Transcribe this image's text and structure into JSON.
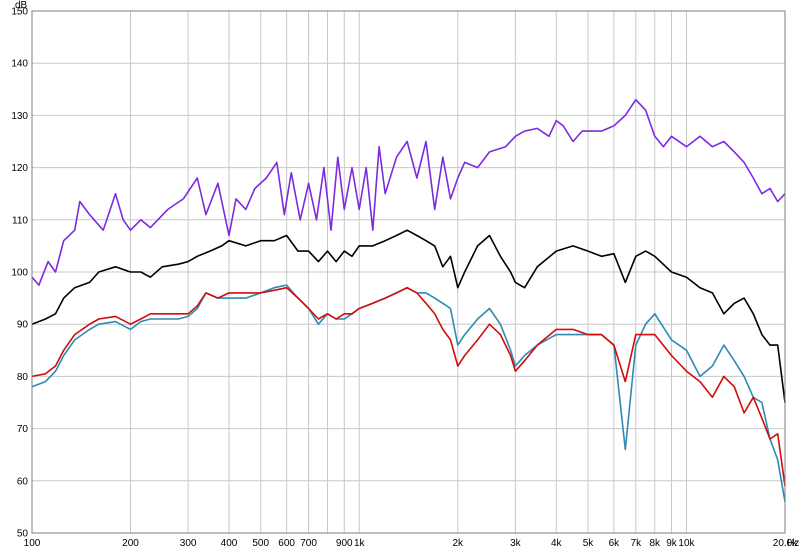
{
  "chart_data": {
    "type": "line",
    "xscale": "log",
    "xlim": [
      100,
      20000
    ],
    "ylim": [
      50,
      150
    ],
    "ylabel": "dB",
    "xunit": "Hz",
    "grid": true,
    "yticks": [
      50,
      60,
      70,
      80,
      90,
      100,
      110,
      120,
      130,
      140,
      150
    ],
    "xticks": [
      {
        "value": 100,
        "label": "100"
      },
      {
        "value": 200,
        "label": "200"
      },
      {
        "value": 300,
        "label": "300"
      },
      {
        "value": 400,
        "label": "400"
      },
      {
        "value": 500,
        "label": "500"
      },
      {
        "value": 600,
        "label": "600"
      },
      {
        "value": 700,
        "label": "700"
      },
      {
        "value": 900,
        "label": "900"
      },
      {
        "value": 1000,
        "label": "1k"
      },
      {
        "value": 2000,
        "label": "2k"
      },
      {
        "value": 3000,
        "label": "3k"
      },
      {
        "value": 4000,
        "label": "4k"
      },
      {
        "value": 5000,
        "label": "5k"
      },
      {
        "value": 6000,
        "label": "6k"
      },
      {
        "value": 7000,
        "label": "7k"
      },
      {
        "value": 8000,
        "label": "8k"
      },
      {
        "value": 9000,
        "label": "9k"
      },
      {
        "value": 10000,
        "label": "10k"
      },
      {
        "value": 20000,
        "label": "20.0k"
      }
    ],
    "xgrid": [
      100,
      200,
      300,
      400,
      500,
      600,
      700,
      800,
      900,
      1000,
      2000,
      3000,
      4000,
      5000,
      6000,
      7000,
      8000,
      9000,
      10000,
      20000
    ],
    "series": [
      {
        "color": "#7b2be0",
        "points": [
          [
            100,
            99
          ],
          [
            105,
            97.5
          ],
          [
            112,
            102
          ],
          [
            118,
            100
          ],
          [
            125,
            106
          ],
          [
            135,
            108
          ],
          [
            140,
            113.5
          ],
          [
            150,
            111
          ],
          [
            165,
            108
          ],
          [
            180,
            115
          ],
          [
            190,
            110
          ],
          [
            200,
            108
          ],
          [
            215,
            110
          ],
          [
            230,
            108.5
          ],
          [
            260,
            112
          ],
          [
            290,
            114
          ],
          [
            320,
            118
          ],
          [
            340,
            111
          ],
          [
            370,
            117
          ],
          [
            400,
            107
          ],
          [
            420,
            114
          ],
          [
            450,
            112
          ],
          [
            480,
            116
          ],
          [
            520,
            118
          ],
          [
            560,
            121
          ],
          [
            590,
            111
          ],
          [
            620,
            119
          ],
          [
            660,
            110
          ],
          [
            700,
            117
          ],
          [
            740,
            110
          ],
          [
            780,
            120
          ],
          [
            820,
            108
          ],
          [
            860,
            122
          ],
          [
            900,
            112
          ],
          [
            950,
            120
          ],
          [
            1000,
            112
          ],
          [
            1050,
            120
          ],
          [
            1100,
            108
          ],
          [
            1150,
            124
          ],
          [
            1200,
            115
          ],
          [
            1300,
            122
          ],
          [
            1400,
            125
          ],
          [
            1500,
            118
          ],
          [
            1600,
            125
          ],
          [
            1700,
            112
          ],
          [
            1800,
            122
          ],
          [
            1900,
            114
          ],
          [
            2000,
            118
          ],
          [
            2100,
            121
          ],
          [
            2300,
            120
          ],
          [
            2500,
            123
          ],
          [
            2800,
            124
          ],
          [
            3000,
            126
          ],
          [
            3200,
            127
          ],
          [
            3500,
            127.5
          ],
          [
            3800,
            126
          ],
          [
            4000,
            129
          ],
          [
            4200,
            128
          ],
          [
            4500,
            125
          ],
          [
            4800,
            127
          ],
          [
            5000,
            127
          ],
          [
            5500,
            127
          ],
          [
            6000,
            128
          ],
          [
            6500,
            130
          ],
          [
            7000,
            133
          ],
          [
            7500,
            131
          ],
          [
            8000,
            126
          ],
          [
            8500,
            124
          ],
          [
            9000,
            126
          ],
          [
            10000,
            124
          ],
          [
            11000,
            126
          ],
          [
            12000,
            124
          ],
          [
            13000,
            125
          ],
          [
            14000,
            123
          ],
          [
            15000,
            121
          ],
          [
            16000,
            118
          ],
          [
            17000,
            115
          ],
          [
            18000,
            116
          ],
          [
            19000,
            113.5
          ],
          [
            20000,
            115
          ]
        ]
      },
      {
        "color": "#000000",
        "points": [
          [
            100,
            90
          ],
          [
            110,
            91
          ],
          [
            118,
            92
          ],
          [
            125,
            95
          ],
          [
            135,
            97
          ],
          [
            150,
            98
          ],
          [
            160,
            100
          ],
          [
            180,
            101
          ],
          [
            200,
            100
          ],
          [
            215,
            100
          ],
          [
            230,
            99
          ],
          [
            250,
            101
          ],
          [
            280,
            101.5
          ],
          [
            300,
            102
          ],
          [
            320,
            103
          ],
          [
            350,
            104
          ],
          [
            380,
            105
          ],
          [
            400,
            106
          ],
          [
            450,
            105
          ],
          [
            500,
            106
          ],
          [
            550,
            106
          ],
          [
            600,
            107
          ],
          [
            650,
            104
          ],
          [
            700,
            104
          ],
          [
            750,
            102
          ],
          [
            800,
            104
          ],
          [
            850,
            102
          ],
          [
            900,
            104
          ],
          [
            950,
            103
          ],
          [
            1000,
            105
          ],
          [
            1100,
            105
          ],
          [
            1200,
            106
          ],
          [
            1300,
            107
          ],
          [
            1400,
            108
          ],
          [
            1500,
            107
          ],
          [
            1600,
            106
          ],
          [
            1700,
            105
          ],
          [
            1800,
            101
          ],
          [
            1900,
            103
          ],
          [
            2000,
            97
          ],
          [
            2100,
            100
          ],
          [
            2300,
            105
          ],
          [
            2500,
            107
          ],
          [
            2700,
            103
          ],
          [
            2900,
            100
          ],
          [
            3000,
            98
          ],
          [
            3200,
            97
          ],
          [
            3500,
            101
          ],
          [
            4000,
            104
          ],
          [
            4500,
            105
          ],
          [
            5000,
            104
          ],
          [
            5500,
            103
          ],
          [
            6000,
            103.5
          ],
          [
            6500,
            98
          ],
          [
            7000,
            103
          ],
          [
            7500,
            104
          ],
          [
            8000,
            103
          ],
          [
            9000,
            100
          ],
          [
            10000,
            99
          ],
          [
            11000,
            97
          ],
          [
            12000,
            96
          ],
          [
            13000,
            92
          ],
          [
            14000,
            94
          ],
          [
            15000,
            95
          ],
          [
            16000,
            92
          ],
          [
            17000,
            88
          ],
          [
            18000,
            86
          ],
          [
            19000,
            86
          ],
          [
            20000,
            75
          ]
        ]
      },
      {
        "color": "#2e8ab4",
        "points": [
          [
            100,
            78
          ],
          [
            110,
            79
          ],
          [
            118,
            81
          ],
          [
            125,
            84
          ],
          [
            135,
            87
          ],
          [
            150,
            89
          ],
          [
            160,
            90
          ],
          [
            180,
            90.5
          ],
          [
            200,
            89
          ],
          [
            215,
            90.5
          ],
          [
            230,
            91
          ],
          [
            250,
            91
          ],
          [
            280,
            91
          ],
          [
            300,
            91.5
          ],
          [
            320,
            93
          ],
          [
            340,
            96
          ],
          [
            370,
            95
          ],
          [
            400,
            95
          ],
          [
            450,
            95
          ],
          [
            500,
            96
          ],
          [
            550,
            97
          ],
          [
            600,
            97.5
          ],
          [
            650,
            95
          ],
          [
            700,
            93
          ],
          [
            750,
            90
          ],
          [
            800,
            92
          ],
          [
            850,
            91
          ],
          [
            900,
            91
          ],
          [
            950,
            92
          ],
          [
            1000,
            93
          ],
          [
            1100,
            94
          ],
          [
            1200,
            95
          ],
          [
            1300,
            96
          ],
          [
            1400,
            97
          ],
          [
            1500,
            96
          ],
          [
            1600,
            96
          ],
          [
            1700,
            95
          ],
          [
            1800,
            94
          ],
          [
            1900,
            93
          ],
          [
            2000,
            86
          ],
          [
            2100,
            88
          ],
          [
            2300,
            91
          ],
          [
            2500,
            93
          ],
          [
            2700,
            90
          ],
          [
            2900,
            85
          ],
          [
            3000,
            82
          ],
          [
            3200,
            84
          ],
          [
            3500,
            86
          ],
          [
            4000,
            88
          ],
          [
            4500,
            88
          ],
          [
            5000,
            88
          ],
          [
            5500,
            88
          ],
          [
            6000,
            86
          ],
          [
            6500,
            66
          ],
          [
            7000,
            86
          ],
          [
            7500,
            90
          ],
          [
            8000,
            92
          ],
          [
            9000,
            87
          ],
          [
            10000,
            85
          ],
          [
            11000,
            80
          ],
          [
            12000,
            82
          ],
          [
            13000,
            86
          ],
          [
            14000,
            83
          ],
          [
            15000,
            80
          ],
          [
            16000,
            76
          ],
          [
            17000,
            75
          ],
          [
            18000,
            68
          ],
          [
            19000,
            64
          ],
          [
            20000,
            56
          ]
        ]
      },
      {
        "color": "#d10c0c",
        "points": [
          [
            100,
            80
          ],
          [
            110,
            80.5
          ],
          [
            118,
            82
          ],
          [
            125,
            85
          ],
          [
            135,
            88
          ],
          [
            150,
            90
          ],
          [
            160,
            91
          ],
          [
            180,
            91.5
          ],
          [
            200,
            90
          ],
          [
            215,
            91
          ],
          [
            230,
            92
          ],
          [
            250,
            92
          ],
          [
            280,
            92
          ],
          [
            300,
            92
          ],
          [
            320,
            93.5
          ],
          [
            340,
            96
          ],
          [
            370,
            95
          ],
          [
            400,
            96
          ],
          [
            450,
            96
          ],
          [
            500,
            96
          ],
          [
            550,
            96.5
          ],
          [
            600,
            97
          ],
          [
            650,
            95
          ],
          [
            700,
            93
          ],
          [
            750,
            91
          ],
          [
            800,
            92
          ],
          [
            850,
            91
          ],
          [
            900,
            92
          ],
          [
            950,
            92
          ],
          [
            1000,
            93
          ],
          [
            1100,
            94
          ],
          [
            1200,
            95
          ],
          [
            1300,
            96
          ],
          [
            1400,
            97
          ],
          [
            1500,
            96
          ],
          [
            1600,
            94
          ],
          [
            1700,
            92
          ],
          [
            1800,
            89
          ],
          [
            1900,
            87
          ],
          [
            2000,
            82
          ],
          [
            2100,
            84
          ],
          [
            2300,
            87
          ],
          [
            2500,
            90
          ],
          [
            2700,
            88
          ],
          [
            2900,
            84
          ],
          [
            3000,
            81
          ],
          [
            3200,
            83
          ],
          [
            3500,
            86
          ],
          [
            4000,
            89
          ],
          [
            4500,
            89
          ],
          [
            5000,
            88
          ],
          [
            5500,
            88
          ],
          [
            6000,
            86
          ],
          [
            6500,
            79
          ],
          [
            7000,
            88
          ],
          [
            7500,
            88
          ],
          [
            8000,
            88
          ],
          [
            9000,
            84
          ],
          [
            10000,
            81
          ],
          [
            11000,
            79
          ],
          [
            12000,
            76
          ],
          [
            13000,
            80
          ],
          [
            14000,
            78
          ],
          [
            15000,
            73
          ],
          [
            16000,
            76
          ],
          [
            17000,
            72
          ],
          [
            18000,
            68
          ],
          [
            19000,
            69
          ],
          [
            20000,
            59
          ]
        ]
      }
    ]
  }
}
